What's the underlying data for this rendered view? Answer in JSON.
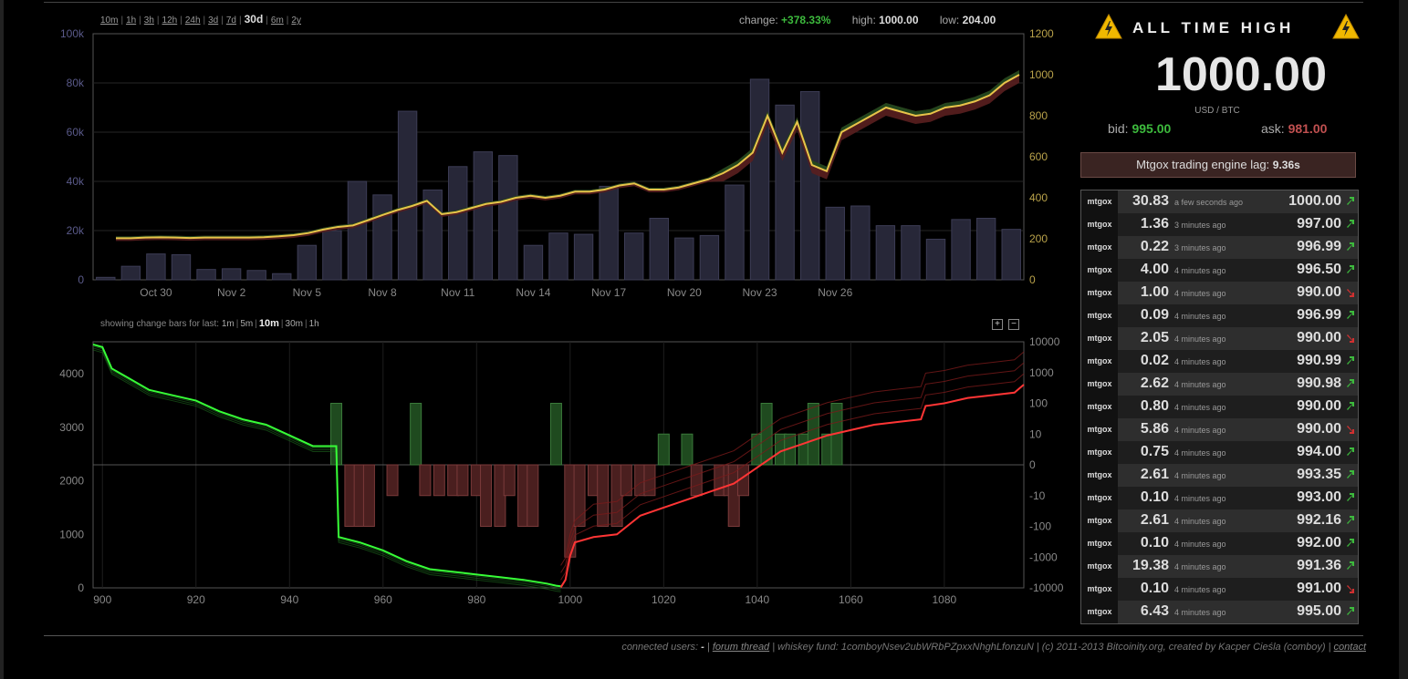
{
  "ranges": [
    {
      "label": "10m",
      "active": false
    },
    {
      "label": "1h",
      "active": false
    },
    {
      "label": "3h",
      "active": false
    },
    {
      "label": "12h",
      "active": false
    },
    {
      "label": "24h",
      "active": false
    },
    {
      "label": "3d",
      "active": false
    },
    {
      "label": "7d",
      "active": false
    },
    {
      "label": "30d",
      "active": true
    },
    {
      "label": "6m",
      "active": false
    },
    {
      "label": "2y",
      "active": false
    }
  ],
  "stats": {
    "change_label": "change:",
    "change_value": "+378.33%",
    "high_label": "high:",
    "high_value": "1000.00",
    "low_label": "low:",
    "low_value": "204.00"
  },
  "change_bars": {
    "label": "showing change bars for last:",
    "options": [
      {
        "label": "1m",
        "active": false
      },
      {
        "label": "5m",
        "active": false
      },
      {
        "label": "10m",
        "active": true
      },
      {
        "label": "30m",
        "active": false
      },
      {
        "label": "1h",
        "active": false
      }
    ],
    "zoom_in": "+",
    "zoom_out": "−"
  },
  "ath": {
    "title": "ALL TIME HIGH",
    "price": "1000.00",
    "unit": "USD / BTC",
    "bid_label": "bid:",
    "bid_value": "995.00",
    "ask_label": "ask:",
    "ask_value": "981.00"
  },
  "lag": {
    "label": "Mtgox trading engine lag:",
    "value": "9.36s"
  },
  "trades": [
    {
      "exchange": "mtgox",
      "amount": "30.83",
      "time": "a few seconds ago",
      "price": "1000.00",
      "dir": "up"
    },
    {
      "exchange": "mtgox",
      "amount": "1.36",
      "time": "3 minutes ago",
      "price": "997.00",
      "dir": "up"
    },
    {
      "exchange": "mtgox",
      "amount": "0.22",
      "time": "3 minutes ago",
      "price": "996.99",
      "dir": "up"
    },
    {
      "exchange": "mtgox",
      "amount": "4.00",
      "time": "4 minutes ago",
      "price": "996.50",
      "dir": "up"
    },
    {
      "exchange": "mtgox",
      "amount": "1.00",
      "time": "4 minutes ago",
      "price": "990.00",
      "dir": "down"
    },
    {
      "exchange": "mtgox",
      "amount": "0.09",
      "time": "4 minutes ago",
      "price": "996.99",
      "dir": "up"
    },
    {
      "exchange": "mtgox",
      "amount": "2.05",
      "time": "4 minutes ago",
      "price": "990.00",
      "dir": "down"
    },
    {
      "exchange": "mtgox",
      "amount": "0.02",
      "time": "4 minutes ago",
      "price": "990.99",
      "dir": "up"
    },
    {
      "exchange": "mtgox",
      "amount": "2.62",
      "time": "4 minutes ago",
      "price": "990.98",
      "dir": "up"
    },
    {
      "exchange": "mtgox",
      "amount": "0.80",
      "time": "4 minutes ago",
      "price": "990.00",
      "dir": "up"
    },
    {
      "exchange": "mtgox",
      "amount": "5.86",
      "time": "4 minutes ago",
      "price": "990.00",
      "dir": "down"
    },
    {
      "exchange": "mtgox",
      "amount": "0.75",
      "time": "4 minutes ago",
      "price": "994.00",
      "dir": "up"
    },
    {
      "exchange": "mtgox",
      "amount": "2.61",
      "time": "4 minutes ago",
      "price": "993.35",
      "dir": "up"
    },
    {
      "exchange": "mtgox",
      "amount": "0.10",
      "time": "4 minutes ago",
      "price": "993.00",
      "dir": "up"
    },
    {
      "exchange": "mtgox",
      "amount": "2.61",
      "time": "4 minutes ago",
      "price": "992.16",
      "dir": "up"
    },
    {
      "exchange": "mtgox",
      "amount": "0.10",
      "time": "4 minutes ago",
      "price": "992.00",
      "dir": "up"
    },
    {
      "exchange": "mtgox",
      "amount": "19.38",
      "time": "4 minutes ago",
      "price": "991.36",
      "dir": "up"
    },
    {
      "exchange": "mtgox",
      "amount": "0.10",
      "time": "4 minutes ago",
      "price": "991.00",
      "dir": "down"
    },
    {
      "exchange": "mtgox",
      "amount": "6.43",
      "time": "4 minutes ago",
      "price": "995.00",
      "dir": "up"
    }
  ],
  "footer": {
    "connected_label": "connected users:",
    "connected_value": "-",
    "forum_link": "forum thread",
    "fund_text": "| whiskey fund: 1comboyNsev2ubWRbPZpxxNhghLfonzuN | (c) 2011-2013 Bitcoinity.org, created by Kacper Cieśla (comboy) |",
    "contact_link": "contact"
  },
  "colors": {
    "up": "#3dba3d",
    "down": "#d03030",
    "price_line": "#e8c44a",
    "volume": "#2a2a3e",
    "accent_warning": "#f0b800"
  },
  "chart_data": [
    {
      "type": "bar",
      "title": "",
      "x_ticks": [
        "Oct 30",
        "Nov 2",
        "Nov 5",
        "Nov 8",
        "Nov 11",
        "Nov 14",
        "Nov 17",
        "Nov 20",
        "Nov 23",
        "Nov 26"
      ],
      "x_tick_index": [
        2,
        5,
        8,
        11,
        14,
        17,
        20,
        23,
        26,
        29
      ],
      "y_left_ticks": [
        "0",
        "20k",
        "40k",
        "60k",
        "80k",
        "100k"
      ],
      "y_right_ticks": [
        "0",
        "200",
        "400",
        "600",
        "800",
        "1000",
        "1200"
      ],
      "ylim_left": [
        0,
        100000
      ],
      "ylim_right": [
        0,
        1200
      ],
      "series": [
        {
          "values": [
            1000,
            5500,
            10500,
            10200,
            4200,
            4500,
            3800,
            2500,
            14000,
            20000,
            40000,
            34500,
            68500,
            36500,
            46000,
            52000,
            50500,
            14000,
            19000,
            18500,
            38000,
            19000,
            25000,
            17000,
            18000,
            38500,
            81500,
            71000,
            76500,
            29500,
            30000,
            22000,
            22000,
            16500,
            24500,
            25000,
            20500
          ]
        },
        {
          "values": [
            203,
            203,
            206,
            207,
            206,
            204,
            206,
            206,
            206,
            206,
            208,
            212,
            218,
            228,
            245,
            258,
            265,
            290,
            316,
            340,
            360,
            385,
            320,
            330,
            350,
            370,
            380,
            400,
            410,
            400,
            410,
            430,
            430,
            440,
            460,
            470,
            440,
            440,
            450,
            470,
            490,
            520,
            560,
            620,
            800,
            620,
            770,
            560,
            530,
            720,
            760,
            800,
            840,
            820,
            800,
            810,
            840,
            850,
            870,
            900,
            960,
            1000
          ]
        }
      ]
    },
    {
      "type": "line",
      "title": "",
      "xlim": [
        898,
        1097
      ],
      "x_ticks": [
        900,
        920,
        940,
        960,
        980,
        1000,
        1020,
        1040,
        1060,
        1080
      ],
      "y_left_ticks": [
        0,
        1000,
        2000,
        3000,
        4000
      ],
      "y_right_ticks": [
        "-10000",
        "-1000",
        "-100",
        "-10",
        "0",
        "10",
        "100",
        "1000",
        "10000"
      ],
      "ylim_left": [
        0,
        4600
      ],
      "series": [
        {
          "x": [
            898,
            900,
            902,
            905,
            910,
            915,
            920,
            925,
            930,
            935,
            940,
            945,
            950,
            950.5,
            955,
            960,
            965,
            970,
            975,
            980,
            985,
            990,
            995,
            997,
            998
          ],
          "values": [
            4550,
            4500,
            4100,
            3950,
            3700,
            3600,
            3500,
            3300,
            3150,
            3050,
            2850,
            2650,
            2650,
            950,
            850,
            700,
            500,
            350,
            300,
            250,
            200,
            150,
            80,
            40,
            30
          ]
        },
        {
          "x": [
            998,
            999,
            1000,
            1001,
            1005,
            1010,
            1015,
            1020,
            1025,
            1030,
            1035,
            1040,
            1045,
            1050,
            1055,
            1060,
            1065,
            1070,
            1075,
            1076,
            1080,
            1085,
            1090,
            1095,
            1097
          ],
          "values": [
            10,
            150,
            600,
            850,
            950,
            1000,
            1350,
            1500,
            1650,
            1800,
            1950,
            2250,
            2550,
            2700,
            2850,
            2950,
            3050,
            3100,
            3150,
            3400,
            3450,
            3550,
            3600,
            3650,
            3800
          ]
        },
        {
          "x": [
            950,
            953,
            955,
            957,
            962,
            967,
            969,
            972,
            975,
            977,
            980,
            982,
            985,
            987,
            990,
            992,
            997,
            1000,
            1002,
            1005,
            1007,
            1010,
            1012,
            1015,
            1017,
            1020,
            1025,
            1027,
            1032,
            1034,
            1035,
            1037,
            1040,
            1042,
            1045,
            1047,
            1050,
            1052,
            1055,
            1057
          ],
          "values": [
            100,
            -100,
            -100,
            -100,
            -10,
            100,
            -10,
            -10,
            -10,
            -10,
            -10,
            -100,
            -100,
            -10,
            -100,
            -100,
            100,
            -1000,
            -100,
            -10,
            -100,
            -100,
            -10,
            -10,
            -10,
            10,
            10,
            -10,
            -10,
            -10,
            -100,
            -10,
            10,
            100,
            10,
            10,
            10,
            100,
            10,
            100
          ]
        }
      ]
    }
  ]
}
